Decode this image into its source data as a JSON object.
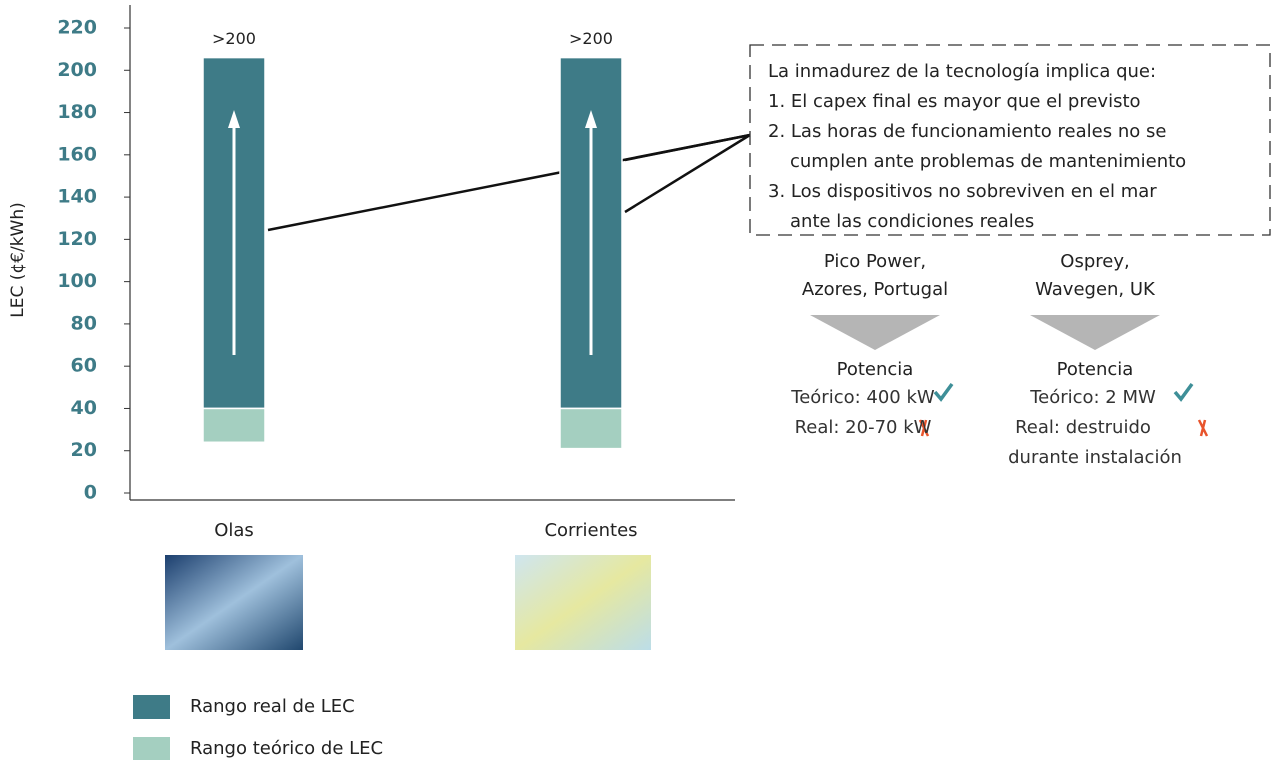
{
  "chart_data": {
    "type": "range_bar",
    "y_label": "LEC (¢€/kWh)",
    "categories": [
      "Olas",
      "Corrientes"
    ],
    "series": [
      {
        "name": "Rango real de LEC",
        "color": "#3e7b87",
        "low": [
          40,
          40
        ],
        "high": [
          206,
          206
        ],
        "value_labels": [
          ">200",
          ">200"
        ]
      },
      {
        "name": "Rango teórico de LEC",
        "color": "#a4cfc0",
        "low": [
          24,
          21
        ],
        "high": [
          40,
          40
        ]
      }
    ],
    "ylim": [
      0,
      220
    ],
    "yticks": [
      0,
      20,
      40,
      60,
      80,
      100,
      120,
      140,
      160,
      180,
      200,
      220
    ],
    "note_lines": [
      "La inmadurez de la tecnología implica que:",
      "1. El capex final es mayor que el previsto",
      "2. Las horas de funcionamiento reales no se",
      "cumplen ante problemas de mantenimiento",
      "3. Los dispositivos no sobreviven en el mar",
      "ante las condiciones reales"
    ],
    "cases": [
      {
        "title_lines": [
          "Pico Power,",
          "Azores, Portugal"
        ],
        "heading": "Potencia",
        "theoretical": "Teórico: 400 kW",
        "real_lines": [
          "Real: 20-70 kW"
        ]
      },
      {
        "title_lines": [
          "Osprey,",
          "Wavegen, UK"
        ],
        "heading": "Potencia",
        "theoretical": "Teórico: 2 MW",
        "real_lines": [
          "Real: destruido",
          "durante instalación"
        ]
      }
    ]
  }
}
